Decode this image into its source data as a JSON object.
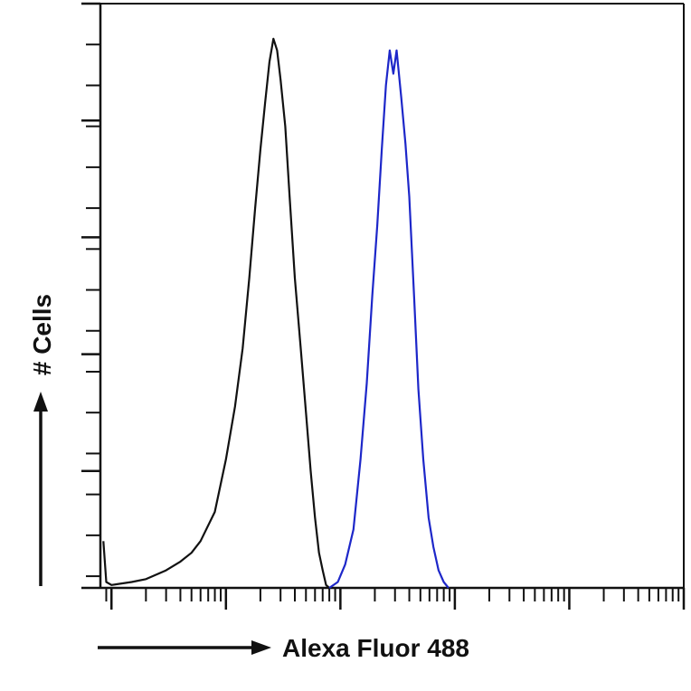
{
  "chart_data": {
    "type": "line",
    "title": "",
    "xlabel": "Alexa Fluor 488",
    "ylabel": "# Cells",
    "xscale": "log",
    "xlim": [
      0.8,
      100000
    ],
    "ylim": [
      0,
      100
    ],
    "grid": false,
    "legend": "none",
    "x_decades": [
      1,
      10,
      100,
      1000,
      10000,
      100000
    ],
    "y_major_ticks": [
      0,
      20,
      40,
      60,
      80,
      100
    ],
    "y_minor_step": 7,
    "series": [
      {
        "color": "#111111",
        "points": [
          [
            0.85,
            8
          ],
          [
            0.9,
            1
          ],
          [
            1.0,
            0.5
          ],
          [
            1.5,
            1
          ],
          [
            2.0,
            1.5
          ],
          [
            3.0,
            3
          ],
          [
            4.0,
            4.5
          ],
          [
            5.0,
            6
          ],
          [
            6.0,
            8
          ],
          [
            8.0,
            13
          ],
          [
            10.0,
            22
          ],
          [
            12.0,
            31
          ],
          [
            14.0,
            41
          ],
          [
            16.0,
            53
          ],
          [
            18.0,
            65
          ],
          [
            20.0,
            75
          ],
          [
            22.0,
            83
          ],
          [
            24.0,
            90
          ],
          [
            26.0,
            94
          ],
          [
            28.0,
            92
          ],
          [
            30.0,
            87
          ],
          [
            33.0,
            79
          ],
          [
            36.0,
            67
          ],
          [
            40.0,
            53
          ],
          [
            45.0,
            41
          ],
          [
            50.0,
            30
          ],
          [
            55.0,
            20
          ],
          [
            60.0,
            12
          ],
          [
            65.0,
            6
          ],
          [
            70.0,
            3
          ],
          [
            75.0,
            0.5
          ],
          [
            80.0,
            0
          ]
        ]
      },
      {
        "color": "#1d27c9",
        "points": [
          [
            80.0,
            0
          ],
          [
            95.0,
            1
          ],
          [
            110.0,
            4
          ],
          [
            130.0,
            10
          ],
          [
            150.0,
            22
          ],
          [
            170.0,
            35
          ],
          [
            190.0,
            50
          ],
          [
            210.0,
            62
          ],
          [
            230.0,
            75
          ],
          [
            250.0,
            86
          ],
          [
            270.0,
            92
          ],
          [
            290.0,
            88
          ],
          [
            310.0,
            92
          ],
          [
            340.0,
            84
          ],
          [
            370.0,
            76
          ],
          [
            400.0,
            67
          ],
          [
            440.0,
            50
          ],
          [
            480.0,
            34
          ],
          [
            530.0,
            22
          ],
          [
            590.0,
            12
          ],
          [
            650.0,
            7
          ],
          [
            720.0,
            3
          ],
          [
            800.0,
            1
          ],
          [
            880.0,
            0
          ]
        ]
      }
    ]
  }
}
